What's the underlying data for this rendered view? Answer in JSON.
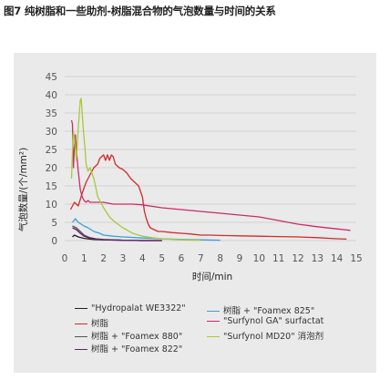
{
  "figure_caption": "图7   纯树脂和一些助剂-树脂混合物的气泡数量与时间的关系",
  "chart_data": {
    "type": "line",
    "xlabel": "时间/min",
    "ylabel": "气泡数量/(个/mm²)",
    "xlim": [
      0,
      15
    ],
    "ylim": [
      0,
      45
    ],
    "xticks": [
      0,
      1,
      2,
      3,
      4,
      5,
      6,
      7,
      8,
      9,
      10,
      11,
      12,
      13,
      14,
      15
    ],
    "yticks": [
      0,
      5,
      10,
      15,
      20,
      25,
      30,
      35,
      40,
      45
    ],
    "grid": "horizontal",
    "legend_position": "bottom",
    "series": [
      {
        "name": "\"Hydropalat WE3322\"",
        "color": "#222222",
        "x": [
          0.4,
          0.5,
          0.7,
          1.0,
          1.5,
          2.0,
          3.0,
          4.0,
          5.0
        ],
        "y": [
          1.0,
          1.5,
          1.0,
          0.6,
          0.3,
          0.2,
          0.1,
          0.0,
          0.0
        ]
      },
      {
        "name": "树脂",
        "color": "#d42a2a",
        "x": [
          0.3,
          0.5,
          0.7,
          0.9,
          1.1,
          1.3,
          1.5,
          1.7,
          1.8,
          1.9,
          2.0,
          2.1,
          2.2,
          2.3,
          2.4,
          2.5,
          2.6,
          2.8,
          3.0,
          3.2,
          3.4,
          3.6,
          3.8,
          3.9,
          4.0,
          4.1,
          4.2,
          4.3,
          4.4,
          4.6,
          4.8,
          5.0,
          5.5,
          6.0,
          6.5,
          7.0,
          7.5,
          8.0,
          9.0,
          10.0,
          11.0,
          12.0,
          13.0,
          14.0,
          14.5
        ],
        "y": [
          8.5,
          10.5,
          9.5,
          13,
          16,
          18,
          20,
          21,
          22.5,
          23,
          23.5,
          22,
          23.5,
          22,
          23.5,
          23,
          21,
          20,
          19.5,
          18.5,
          17,
          16,
          15,
          13.5,
          12,
          8,
          6,
          4.5,
          3.5,
          3,
          2.5,
          2.5,
          2.2,
          2,
          1.8,
          1.5,
          1.5,
          1.4,
          1.3,
          1.2,
          1.1,
          1.0,
          0.8,
          0.5,
          0.4
        ]
      },
      {
        "name": "树脂 + \"Foamex 880\"",
        "color": "#555555",
        "x": [
          0.4,
          0.6,
          0.8,
          1.0,
          1.3,
          1.6,
          2.0,
          3.0,
          4.0,
          5.0
        ],
        "y": [
          4.0,
          3.5,
          2.5,
          1.5,
          0.8,
          0.5,
          0.3,
          0.1,
          0.0,
          0.0
        ]
      },
      {
        "name": "树脂 + \"Foamex 822\"",
        "color": "#6a1e6e",
        "x": [
          0.4,
          0.6,
          0.8,
          1.0,
          1.3,
          1.6,
          2.0,
          3.0,
          4.0,
          5.0
        ],
        "y": [
          3.5,
          3.0,
          2.0,
          1.2,
          0.7,
          0.4,
          0.2,
          0.1,
          0.0,
          0.0
        ]
      },
      {
        "name": "树脂 + \"Foamex 825\"",
        "color": "#3b9ed8",
        "x": [
          0.4,
          0.55,
          0.7,
          0.85,
          1.0,
          1.2,
          1.5,
          1.8,
          2.0,
          2.5,
          3.0,
          4.0,
          5.0,
          6.0,
          7.0,
          8.0
        ],
        "y": [
          5,
          6,
          5,
          4.5,
          4,
          3.5,
          2.5,
          2,
          1.5,
          1.2,
          1,
          0.7,
          0.5,
          0.3,
          0.2,
          0.1
        ]
      },
      {
        "name": "\"Surfynol GA\" surfactat",
        "color": "#cc2a6a",
        "x": [
          0.35,
          0.4,
          0.45,
          0.5,
          0.55,
          0.6,
          0.7,
          0.8,
          0.9,
          1.0,
          1.1,
          1.2,
          1.3,
          1.5,
          1.7,
          2.0,
          2.5,
          3.0,
          3.5,
          4.0,
          5.0,
          6.0,
          7.0,
          8.0,
          9.0,
          10.0,
          11.0,
          12.0,
          13.0,
          14.0,
          14.7
        ],
        "y": [
          33,
          32,
          20,
          26,
          29,
          25,
          19,
          14,
          12,
          11,
          10.5,
          11,
          10.5,
          10.5,
          10.5,
          10.5,
          10,
          10,
          10,
          9.8,
          9,
          8.5,
          8,
          7.5,
          7,
          6.5,
          5.5,
          4.5,
          3.8,
          3.2,
          2.8
        ]
      },
      {
        "name": "\"Surfynol MD20\" 消泡剂",
        "color": "#a8c83c",
        "x": [
          0.35,
          0.4,
          0.45,
          0.5,
          0.6,
          0.7,
          0.8,
          0.85,
          0.9,
          0.95,
          1.0,
          1.05,
          1.1,
          1.2,
          1.3,
          1.5,
          1.7,
          2.0,
          2.3,
          2.6,
          3.0,
          3.5,
          4.0,
          4.5,
          5.0,
          6.0,
          7.0
        ],
        "y": [
          17,
          24,
          30,
          28,
          22,
          31,
          38.5,
          39,
          35,
          31,
          28,
          25,
          21,
          19,
          20,
          17,
          12,
          9,
          6.5,
          5,
          3.5,
          2,
          1.2,
          0.8,
          0.5,
          0.2,
          0.1
        ]
      }
    ]
  }
}
